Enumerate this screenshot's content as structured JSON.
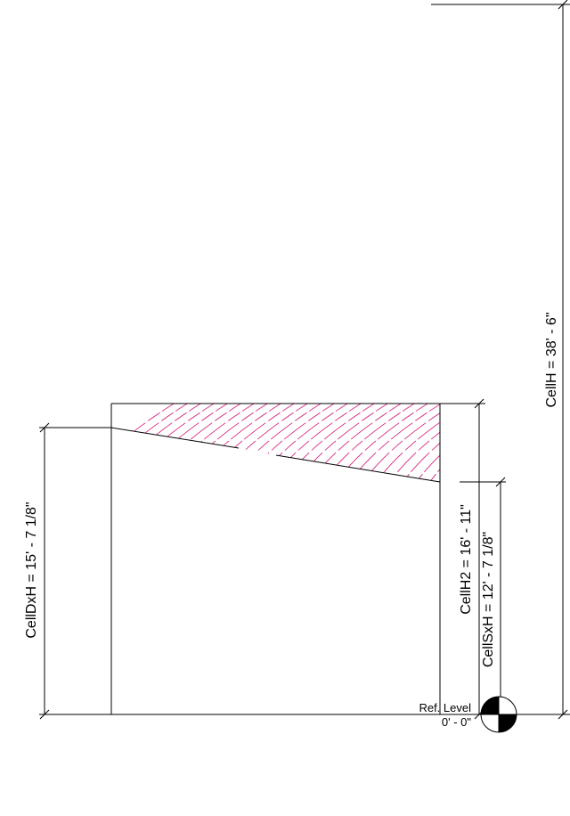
{
  "dimensions": {
    "cell_h": "CellH = 38' - 6\"",
    "cell_h2": "CellH2 = 16' - 11\"",
    "cell_sx_h": "CellSxH = 12' - 7 1/8\"",
    "cell_dx_h": "CellDxH = 15' - 7 1/8\""
  },
  "level": {
    "name": "Ref. Level",
    "elevation": "0' - 0\""
  },
  "colors": {
    "line": "#000000",
    "hatch": "#d4147a",
    "background": "#ffffff"
  },
  "icons": {
    "level_marker": "level-target-icon"
  }
}
